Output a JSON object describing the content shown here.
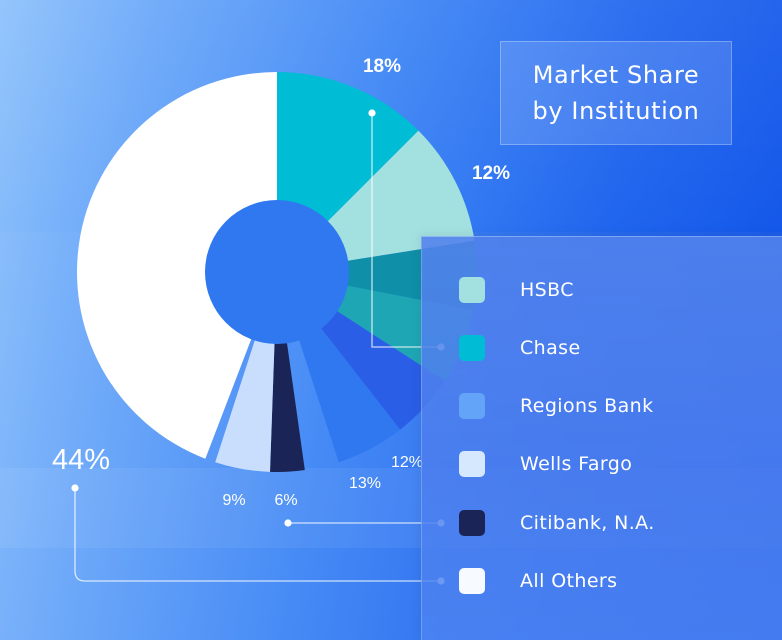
{
  "chart_data": {
    "type": "pie",
    "title": "Market Share by Institution",
    "title_lines": [
      "Market Share",
      "by Institution"
    ],
    "slices": [
      {
        "label": "Chase",
        "value": 18,
        "value_label": "18%",
        "color": "#00bcd4"
      },
      {
        "label": "HSBC",
        "value": 12,
        "value_label": "12%",
        "color": "#a3e0e0"
      },
      {
        "label": "Regions Bank",
        "value": 12,
        "value_label": "12%",
        "color": "#2f78f0"
      },
      {
        "label": "Wells Fargo",
        "value": 9,
        "value_label": "9%",
        "color": "#c8defc"
      },
      {
        "label": "Citibank, N.A.",
        "value": 6,
        "value_label": "6%",
        "color": "#1a2456"
      },
      {
        "label": "All Others",
        "value": 44,
        "value_label": "44%",
        "color": "#ffffff"
      }
    ],
    "extra_labels": [
      "13%"
    ],
    "legend": {
      "placement": "bottom-right",
      "items": [
        {
          "label": "HSBC",
          "color": "#a3e0e0"
        },
        {
          "label": "Chase",
          "color": "#00bcd4"
        },
        {
          "label": "Regions Bank",
          "color": "#63a4f8"
        },
        {
          "label": "Wells Fargo",
          "color": "#d6e8fd"
        },
        {
          "label": "Citibank, N.A.",
          "color": "#1a2456"
        },
        {
          "label": "All Others",
          "color": "#f7faff"
        }
      ]
    }
  }
}
